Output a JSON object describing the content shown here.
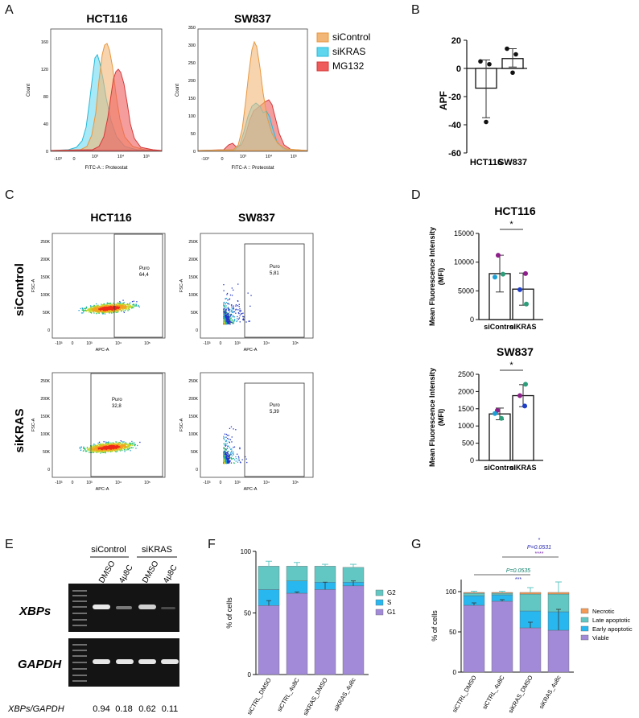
{
  "panels": {
    "A": "A",
    "B": "B",
    "C": "C",
    "D": "D",
    "E": "E",
    "F": "F",
    "G": "G"
  },
  "colors": {
    "sicontrol": "#f2b777",
    "sikras": "#5ed7ee",
    "mg132": "#ef5b5b",
    "purple": "#a28ad8",
    "blue": "#28b7ef",
    "teal": "#62c7c3",
    "orange": "#f59a56"
  },
  "panelA": {
    "hct_title": "HCT116",
    "sw_title": "SW837",
    "ylabel": "Count",
    "xlabel": "FITC-A :: Proteostat",
    "hct_yticks": [
      "0",
      "40",
      "80",
      "120",
      "160"
    ],
    "sw_yticks": [
      "0",
      "50",
      "100",
      "150",
      "200",
      "250",
      "300",
      "350"
    ],
    "xticks": [
      "-10³",
      "0",
      "10³",
      "10⁴",
      "10⁵"
    ],
    "legend": [
      "siControl",
      "siKRAS",
      "MG132"
    ]
  },
  "chart_data": [
    {
      "type": "bar",
      "title": "",
      "categories": [
        "HCT116",
        "SW837"
      ],
      "values": [
        -14,
        7
      ],
      "points": [
        [
          5,
          3,
          -38
        ],
        [
          14,
          10,
          -3
        ]
      ],
      "err": [
        [
          -35,
          6
        ],
        [
          1,
          14
        ]
      ],
      "ylabel": "APF",
      "ylim": [
        -60,
        20
      ],
      "yticks": [
        "20",
        "0",
        "-20",
        "-40",
        "-60"
      ]
    },
    {
      "type": "bar",
      "title": "HCT116",
      "categories": [
        "siControl",
        "siKRAS"
      ],
      "values": [
        8000,
        5300
      ],
      "err": [
        [
          4800,
          11200
        ],
        [
          2500,
          8100
        ]
      ],
      "ylabel": "Mean Fluorescence Intensity (MFI)",
      "ylim": [
        0,
        15000
      ],
      "yticks": [
        "15000",
        "10000",
        "5000",
        "0"
      ],
      "sig": "*"
    },
    {
      "type": "bar",
      "title": "SW837",
      "categories": [
        "siControl",
        "siKRAS"
      ],
      "values": [
        1350,
        1880
      ],
      "err": [
        [
          1180,
          1520
        ],
        [
          1560,
          2200
        ]
      ],
      "ylabel": "Mean Fluorescence Intensity (MFI)",
      "ylim": [
        0,
        2500
      ],
      "yticks": [
        "2500",
        "2000",
        "1500",
        "1000",
        "500",
        "0"
      ],
      "sig": "*"
    },
    {
      "type": "bar",
      "title": "",
      "categories": [
        "siCTRL_DMSO",
        "siCTRL_4u8C",
        "siKRAS_DMSO",
        "siKRAS_4u8c"
      ],
      "series": [
        {
          "name": "G1",
          "values": [
            56,
            66,
            69,
            72
          ]
        },
        {
          "name": "S",
          "values": [
            13,
            10,
            6,
            3
          ]
        },
        {
          "name": "G2",
          "values": [
            19,
            12,
            13,
            12
          ]
        }
      ],
      "ylabel": "% of cells",
      "ylim": [
        0,
        100
      ],
      "yticks": [
        "100",
        "50",
        "0"
      ]
    },
    {
      "type": "bar",
      "title": "",
      "categories": [
        "siCTRL_DMSO",
        "siCTRL_4u8C",
        "siKRAS_DMSO",
        "siKRAS_4u8c"
      ],
      "series": [
        {
          "name": "Viable",
          "values": [
            83,
            88,
            55,
            52
          ]
        },
        {
          "name": "Early apoptotic",
          "values": [
            12,
            8,
            21,
            23
          ]
        },
        {
          "name": "Late apoptotic",
          "values": [
            3,
            2,
            21,
            22
          ]
        },
        {
          "name": "Necrotic",
          "values": [
            1,
            1,
            2,
            2
          ]
        }
      ],
      "ylabel": "% of cells",
      "ylim": [
        0,
        120
      ],
      "yticks": [
        "100",
        "50",
        "0"
      ],
      "annotations": [
        "P=0.0535",
        "***",
        "*",
        "P=0.0531",
        "****"
      ]
    }
  ],
  "panelC": {
    "hct_title": "HCT116",
    "sw_title": "SW837",
    "row1": "siControl",
    "row2": "siKRAS",
    "ylabel": "FSC-A",
    "xlabel": "APC-A",
    "gate": "Puro",
    "values": {
      "hct_sic": "64,4",
      "sw_sic": "5,81",
      "hct_sik": "32,8",
      "sw_sik": "5,39"
    },
    "yticks": [
      "250K",
      "200K",
      "150K",
      "100K",
      "50K",
      "0"
    ],
    "xticks": [
      "-10³",
      "0",
      "10³",
      "10⁴",
      "10⁵"
    ]
  },
  "panelE": {
    "group1": "siControl",
    "group2": "siKRAS",
    "lanes": [
      "DMSO",
      "4μ8C",
      "DMSO",
      "4μ8C"
    ],
    "gene1": "XBPs",
    "gene2": "GAPDH",
    "ratio_label": "XBPs/GAPDH",
    "ratios": [
      "0.94",
      "0.18",
      "0.62",
      "0.11"
    ]
  },
  "legendF": [
    "G2",
    "S",
    "G1"
  ],
  "legendG": [
    "Necrotic",
    "Late apoptotic",
    "Early apoptotic",
    "Viable"
  ]
}
